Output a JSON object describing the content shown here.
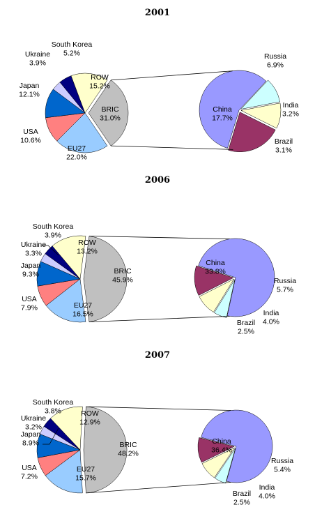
{
  "colors": {
    "ROW": "#FFFFCC",
    "BRIC": "#C0C0C0",
    "EU27": "#99CCFF",
    "USA": "#FF8080",
    "Japan": "#0066CC",
    "Ukraine": "#CCCCFF",
    "South Korea": "#000080",
    "China": "#9999FF",
    "Russia": "#993366",
    "India": "#FFFFCC",
    "Brazil": "#CCFFFF",
    "connector": "#000000"
  },
  "chart_data": [
    {
      "type": "pie",
      "title": "2001",
      "main": [
        {
          "name": "BRIC",
          "value": 31.0,
          "label": "31.0%"
        },
        {
          "name": "EU27",
          "value": 22.0,
          "label": "22.0%"
        },
        {
          "name": "USA",
          "value": 10.6,
          "label": "10.6%"
        },
        {
          "name": "Japan",
          "value": 12.1,
          "label": "12.1%"
        },
        {
          "name": "Ukraine",
          "value": 3.9,
          "label": "3.9%"
        },
        {
          "name": "South Korea",
          "value": 5.2,
          "label": "5.2%"
        },
        {
          "name": "ROW",
          "value": 15.2,
          "label": "15.2%"
        }
      ],
      "breakout": [
        {
          "name": "China",
          "value": 17.7,
          "label": "17.7%"
        },
        {
          "name": "Brazil",
          "value": 3.1,
          "label": "3.1%"
        },
        {
          "name": "India",
          "value": 3.2,
          "label": "3.2%"
        },
        {
          "name": "Russia",
          "value": 6.9,
          "label": "6.9%"
        }
      ]
    },
    {
      "type": "pie",
      "title": "2006",
      "main": [
        {
          "name": "BRIC",
          "value": 45.9,
          "label": "45.9%"
        },
        {
          "name": "EU27",
          "value": 16.5,
          "label": "16.5%"
        },
        {
          "name": "USA",
          "value": 7.9,
          "label": "7.9%"
        },
        {
          "name": "Japan",
          "value": 9.3,
          "label": "9.3%"
        },
        {
          "name": "Ukraine",
          "value": 3.3,
          "label": "3.3%"
        },
        {
          "name": "South Korea",
          "value": 3.9,
          "label": "3.9%"
        },
        {
          "name": "ROW",
          "value": 13.2,
          "label": "13.2%"
        }
      ],
      "breakout": [
        {
          "name": "China",
          "value": 33.8,
          "label": "33.8%"
        },
        {
          "name": "Brazil",
          "value": 2.5,
          "label": "2.5%"
        },
        {
          "name": "India",
          "value": 4.0,
          "label": "4.0%"
        },
        {
          "name": "Russia",
          "value": 5.7,
          "label": "5.7%"
        }
      ]
    },
    {
      "type": "pie",
      "title": "2007",
      "main": [
        {
          "name": "BRIC",
          "value": 48.2,
          "label": "48.2%"
        },
        {
          "name": "EU27",
          "value": 15.7,
          "label": "15.7%"
        },
        {
          "name": "USA",
          "value": 7.2,
          "label": "7.2%"
        },
        {
          "name": "Japan",
          "value": 8.9,
          "label": "8.9%"
        },
        {
          "name": "Ukraine",
          "value": 3.2,
          "label": "3.2%"
        },
        {
          "name": "South Korea",
          "value": 3.8,
          "label": "3.8%"
        },
        {
          "name": "ROW",
          "value": 12.9,
          "label": "12.9%"
        }
      ],
      "breakout": [
        {
          "name": "China",
          "value": 36.4,
          "label": "36.4%"
        },
        {
          "name": "Brazil",
          "value": 2.5,
          "label": "2.5%"
        },
        {
          "name": "India",
          "value": 4.0,
          "label": "4.0%"
        },
        {
          "name": "Russia",
          "value": 5.4,
          "label": "5.4%"
        }
      ]
    }
  ]
}
